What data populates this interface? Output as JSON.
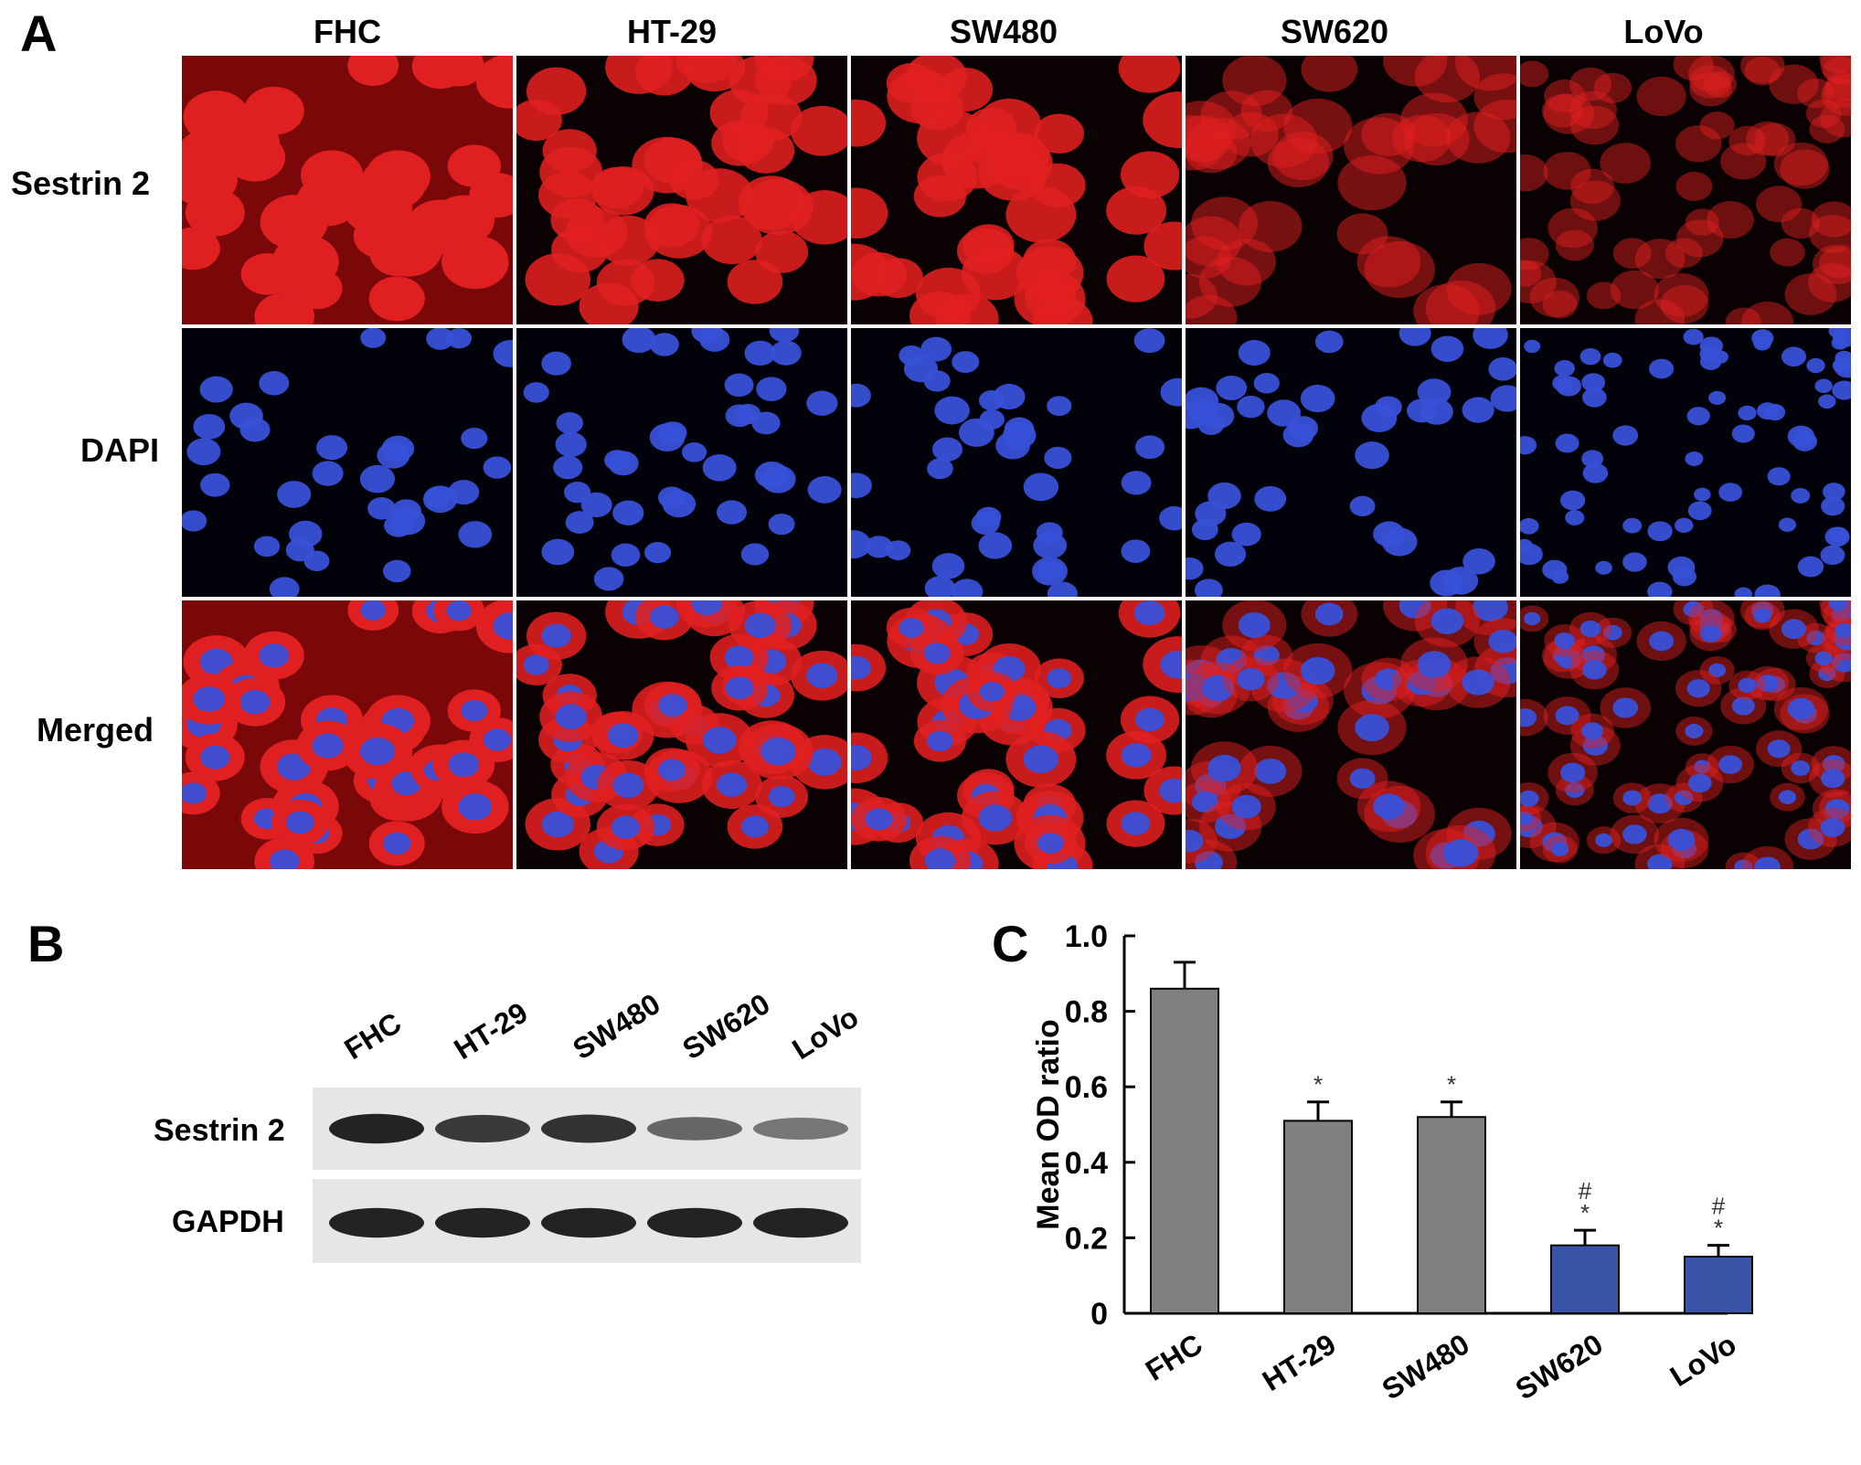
{
  "panels": {
    "a": "A",
    "b": "B",
    "c": "C"
  },
  "cell_lines": [
    "FHC",
    "HT-29",
    "SW480",
    "SW620",
    "LoVo"
  ],
  "panel_a": {
    "rows": [
      "Sestrin 2",
      "DAPI",
      "Merged"
    ],
    "sestrin_intensity": [
      1.0,
      0.85,
      0.85,
      0.35,
      0.3
    ]
  },
  "panel_b": {
    "rows": [
      "Sestrin 2",
      "GAPDH"
    ],
    "sestrin_band_intensity": [
      0.9,
      0.75,
      0.8,
      0.45,
      0.35
    ],
    "gapdh_band_intensity": [
      0.9,
      0.9,
      0.9,
      0.9,
      0.9
    ]
  },
  "chart_data": {
    "type": "bar",
    "categories": [
      "FHC",
      "HT-29",
      "SW480",
      "SW620",
      "LoVo"
    ],
    "values": [
      0.86,
      0.51,
      0.52,
      0.18,
      0.15
    ],
    "errors": [
      0.07,
      0.05,
      0.04,
      0.04,
      0.03
    ],
    "annotations": [
      "",
      "*",
      "*",
      "#\n*",
      "#\n*"
    ],
    "bar_colors": [
      "#808080",
      "#808080",
      "#808080",
      "#3a55a8",
      "#3a55a8"
    ],
    "ylabel": "Mean OD ratio",
    "xlabel": "",
    "ylim": [
      0,
      1.0
    ],
    "yticks": [
      "0",
      "0.2",
      "0.4",
      "0.6",
      "0.8",
      "1.0"
    ],
    "ytick_values": [
      0,
      0.2,
      0.4,
      0.6,
      0.8,
      1.0
    ],
    "grid": false
  },
  "colors": {
    "grey_bar": "#808080",
    "blue_bar": "#3a55a8",
    "sestrin_red": "#e02020",
    "dapi_blue": "#3850d8"
  }
}
